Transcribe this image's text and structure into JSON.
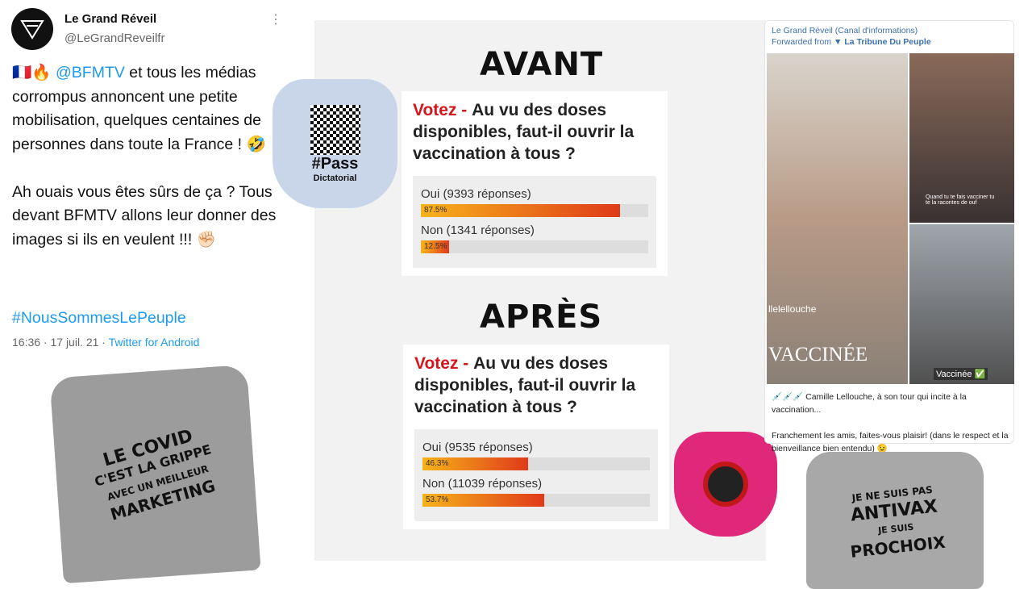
{
  "tweet": {
    "name": "Le Grand Réveil",
    "handle": "@LeGrandReveilfr",
    "text_pre": "🇫🇷🔥 ",
    "mention": "@BFMTV",
    "text_post": " et tous les médias corrompus annoncent une petite mobilisation, quelques centaines de personnes dans toute la France ! 🤣",
    "text2": "Ah ouais vous êtes sûrs de ça ? Tous devant BFMTV allons leur donner des images si ils en veulent !!! ✊🏻",
    "hashtag": "#NousSommesLePeuple",
    "time": "16:36 · 17 juil. 21 · ",
    "source": "Twitter for Android"
  },
  "collage": {
    "before": {
      "heading": "AVANT",
      "votez": "Votez - ",
      "question": "Au vu des doses disponibles, faut-il ouvrir la vaccination à tous ?",
      "options": [
        {
          "label": "Oui (9393 réponses)",
          "pct": "87.5%",
          "value": 87.5
        },
        {
          "label": "Non (1341 réponses)",
          "pct": "12.5%",
          "value": 12.5
        }
      ]
    },
    "after": {
      "heading": "APRÈS",
      "votez": "Votez - ",
      "question": "Au vu des doses disponibles, faut-il ouvrir la vaccination à tous ?",
      "options": [
        {
          "label": "Oui (9535 réponses)",
          "pct": "46.3%",
          "value": 46.3
        },
        {
          "label": "Non (11039 réponses)",
          "pct": "53.7%",
          "value": 53.7
        }
      ]
    }
  },
  "bib_blue": {
    "text": "#Pass",
    "text2": "Dictatorial"
  },
  "shirt1": {
    "lines": [
      "LE COVID",
      "C'EST LA GRIPPE",
      "AVEC UN MEILLEUR",
      "MARKETING"
    ]
  },
  "shirt2": {
    "lines": [
      "JE NE SUIS PAS",
      "ANTIVAX",
      "JE SUIS",
      "PROCHOIX"
    ]
  },
  "telegram": {
    "channel": "Le Grand Réveil (Canal d'informations)",
    "forwarded_prefix": "Forwarded from ",
    "forwarded_from": "▼ La Tribune Du Peuple",
    "img_overlay1": "llelellouche",
    "img_overlay2": "VACCINÉE",
    "img_overlay3": "Quand tu te fais vacciner tu te la racontes de ouf",
    "img_overlay4": "Vaccinée ✅",
    "caption1": "💉💉💉 Camille Lellouche, à son tour qui incite à la vaccination...",
    "caption2": "Franchement les amis, faites-vous plaisir! (dans le respect et la bienveillance bien entendu) 😉"
  }
}
